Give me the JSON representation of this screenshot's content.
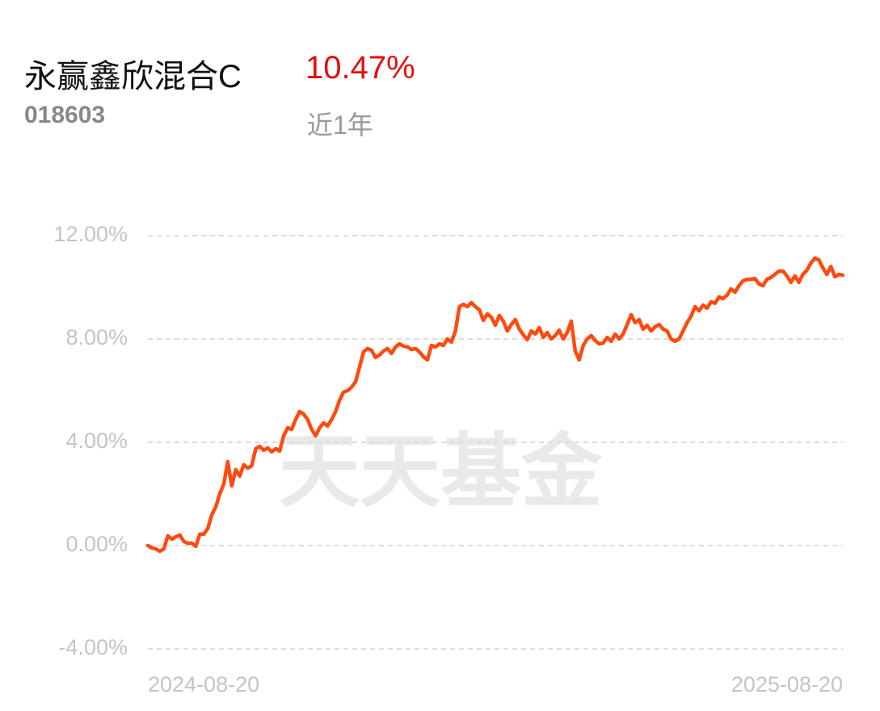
{
  "header": {
    "title": "永赢鑫欣混合C",
    "return": "10.47%",
    "code": "018603",
    "period": "近1年"
  },
  "watermark": "天天基金",
  "chart_data": {
    "type": "line",
    "color": "#ff4a0f",
    "grid": true,
    "ylim": [
      -4,
      12
    ],
    "yticks": [
      {
        "value": -4,
        "label": "-4.00%"
      },
      {
        "value": 0,
        "label": "0.00%"
      },
      {
        "value": 4,
        "label": "4.00%"
      },
      {
        "value": 8,
        "label": "8.00%"
      },
      {
        "value": 12,
        "label": "12.00%"
      }
    ],
    "categories": [
      "2024-08-20",
      null,
      null,
      null,
      null,
      null,
      null,
      null,
      null,
      null,
      null,
      null,
      null,
      null,
      null,
      null,
      null,
      null,
      null,
      null,
      null,
      null,
      null,
      null,
      null,
      null,
      null,
      null,
      null,
      null,
      null,
      null,
      null,
      null,
      null,
      null,
      null,
      null,
      null,
      null,
      null,
      null,
      null,
      null,
      null,
      null,
      null,
      null,
      null,
      null,
      null,
      null,
      null,
      null,
      null,
      null,
      null,
      null,
      null,
      null,
      null,
      null,
      null,
      null,
      null,
      null,
      null,
      null,
      null,
      null,
      null,
      null,
      null,
      null,
      null,
      null,
      null,
      null,
      null,
      null,
      null,
      null,
      null,
      null,
      null,
      null,
      null,
      null,
      null,
      null,
      null,
      null,
      null,
      null,
      null,
      null,
      null,
      null,
      null,
      null,
      null,
      null,
      null,
      null,
      null,
      null,
      null,
      null,
      null,
      null,
      null,
      null,
      null,
      null,
      null,
      null,
      null,
      null,
      null,
      null,
      null,
      null,
      null,
      null,
      null,
      null,
      null,
      null,
      null,
      null,
      null,
      null,
      null,
      null,
      null,
      null,
      null,
      null,
      null,
      null,
      null,
      null,
      null,
      null,
      null,
      null,
      null,
      null,
      null,
      null,
      null,
      null,
      null,
      null,
      null,
      null,
      null,
      null,
      null,
      null,
      null,
      null,
      null,
      null,
      null,
      null,
      null,
      null,
      null,
      null,
      null,
      null,
      null,
      null,
      "2025-08-20"
    ],
    "values": [
      0,
      -0.09,
      -0.13,
      -0.22,
      -0.13,
      0.38,
      0.25,
      0.34,
      0.41,
      0.16,
      0.09,
      0.09,
      -0.03,
      0.44,
      0.44,
      0.66,
      1.19,
      1.5,
      2.0,
      2.38,
      3.25,
      2.31,
      2.94,
      2.69,
      3.13,
      3.0,
      3.09,
      3.75,
      3.84,
      3.69,
      3.78,
      3.63,
      3.75,
      3.66,
      4.25,
      4.56,
      4.5,
      4.88,
      5.19,
      5.09,
      4.88,
      4.5,
      4.25,
      4.56,
      4.75,
      4.63,
      4.88,
      5.19,
      5.63,
      5.94,
      6.0,
      6.13,
      6.34,
      6.91,
      7.5,
      7.63,
      7.56,
      7.28,
      7.38,
      7.53,
      7.63,
      7.44,
      7.69,
      7.81,
      7.72,
      7.69,
      7.59,
      7.63,
      7.5,
      7.31,
      7.19,
      7.75,
      7.69,
      7.81,
      7.75,
      8.0,
      7.88,
      8.31,
      9.25,
      9.34,
      9.25,
      9.41,
      9.25,
      9.13,
      8.72,
      8.97,
      8.84,
      8.53,
      8.91,
      8.69,
      8.31,
      8.56,
      8.75,
      8.38,
      8.16,
      7.97,
      8.31,
      8.19,
      8.44,
      8.06,
      8.25,
      8.0,
      8.13,
      8.34,
      8.0,
      8.25,
      8.69,
      7.53,
      7.19,
      7.75,
      8.0,
      8.13,
      7.94,
      7.81,
      7.84,
      8.06,
      7.91,
      8.19,
      8.0,
      8.19,
      8.56,
      8.94,
      8.63,
      8.75,
      8.38,
      8.53,
      8.31,
      8.47,
      8.56,
      8.38,
      8.31,
      8.0,
      7.91,
      8.0,
      8.31,
      8.63,
      8.88,
      9.25,
      9.09,
      9.31,
      9.19,
      9.44,
      9.38,
      9.63,
      9.56,
      9.69,
      9.94,
      9.81,
      10.06,
      10.25,
      10.31,
      10.31,
      10.34,
      10.13,
      10.06,
      10.31,
      10.38,
      10.5,
      10.63,
      10.63,
      10.44,
      10.19,
      10.44,
      10.19,
      10.5,
      10.66,
      10.94,
      11.13,
      11.06,
      10.75,
      10.5,
      10.81,
      10.41,
      10.5,
      10.47
    ]
  }
}
